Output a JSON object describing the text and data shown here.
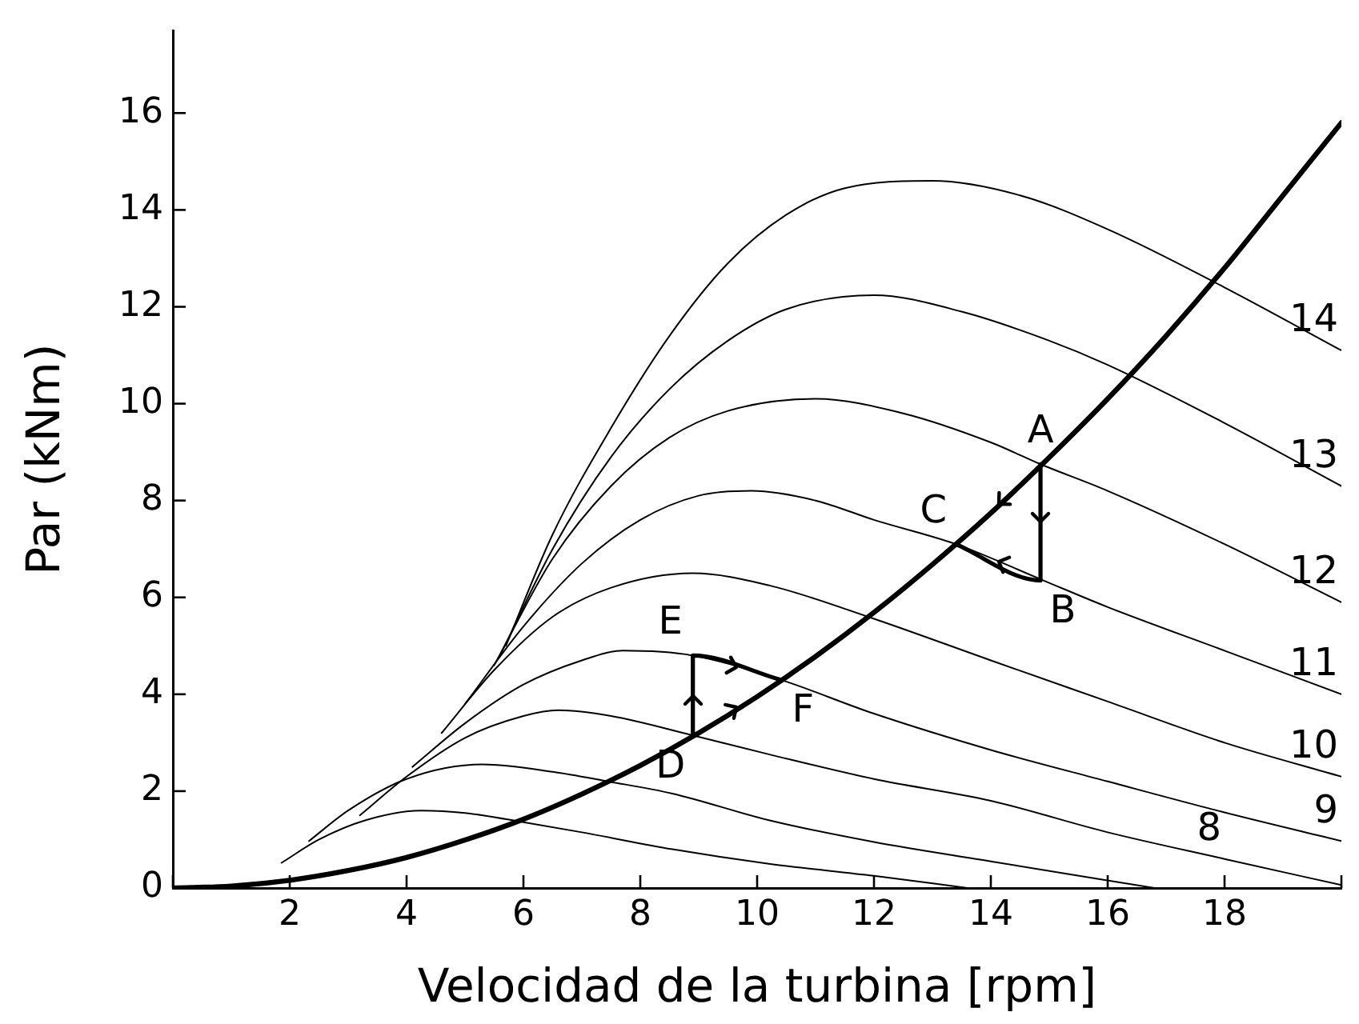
{
  "chart_data": {
    "type": "line",
    "xlabel": "Velocidad de la turbina [rpm]",
    "ylabel": "Par (kNm)",
    "xlim": [
      0,
      20
    ],
    "ylim": [
      0,
      17.7
    ],
    "xticks": [
      {
        "value": 0,
        "label": null
      },
      2,
      4,
      6,
      8,
      10,
      12,
      14,
      16,
      18,
      {
        "value": 20,
        "label": null
      }
    ],
    "yticks": [
      0,
      2,
      4,
      6,
      8,
      10,
      12,
      14,
      16
    ],
    "grid": false,
    "legend": false,
    "marker": "none",
    "line_style": "solid",
    "series": [
      {
        "color": "#000000",
        "x": [
          1.86,
          2.5,
          3.3,
          4.25,
          5,
          6,
          7,
          8.55,
          10.2,
          12,
          13.6
        ],
        "values": [
          0.52,
          1.0,
          1.4,
          1.6,
          1.55,
          1.36,
          1.15,
          0.8,
          0.5,
          0.25,
          0
        ]
      },
      {
        "color": "#000000",
        "x": [
          2.33,
          3,
          4,
          5.3,
          6.5,
          7.45,
          8.55,
          10.2,
          12,
          14,
          16.8
        ],
        "values": [
          0.97,
          1.6,
          2.25,
          2.55,
          2.4,
          2.2,
          1.95,
          1.4,
          0.95,
          0.55,
          0
        ]
      },
      {
        "color": "#000000",
        "x": [
          3.2,
          4,
          5,
          6,
          6.6,
          7.5,
          8.9,
          10.2,
          12,
          14,
          16,
          18,
          20
        ],
        "values": [
          1.5,
          2.3,
          3.1,
          3.55,
          3.67,
          3.55,
          3.15,
          2.76,
          2.25,
          1.8,
          1.15,
          0.6,
          0.06
        ]
      },
      {
        "color": "#000000",
        "x": [
          4.1,
          5,
          6,
          7,
          7.7,
          8.9,
          10.4,
          12,
          14,
          16,
          18,
          20
        ],
        "values": [
          2.5,
          3.4,
          4.2,
          4.7,
          4.9,
          4.8,
          4.3,
          3.6,
          2.85,
          2.2,
          1.56,
          0.97
        ]
      },
      {
        "color": "#000000",
        "x": [
          4.6,
          5.5,
          6.5,
          7.5,
          8.9,
          10.2,
          11.9,
          14,
          16,
          18,
          20
        ],
        "values": [
          3.2,
          4.5,
          5.6,
          6.2,
          6.5,
          6.25,
          5.6,
          4.7,
          3.85,
          3.0,
          2.3
        ]
      },
      {
        "color": "#000000",
        "x": [
          5.0,
          6,
          7,
          8,
          9,
          9.9,
          11,
          12,
          13.4,
          14.9,
          16,
          18,
          20
        ],
        "values": [
          3.8,
          5.4,
          6.7,
          7.6,
          8.1,
          8.2,
          8.0,
          7.6,
          7.1,
          6.35,
          5.8,
          4.9,
          4.0
        ]
      },
      {
        "color": "#000000",
        "x": [
          5.5,
          6.5,
          7.5,
          8.5,
          9.5,
          11,
          12.5,
          14,
          14.85,
          16,
          18,
          20
        ],
        "values": [
          4.6,
          6.8,
          8.3,
          9.3,
          9.85,
          10.1,
          9.8,
          9.2,
          8.75,
          8.2,
          7.1,
          5.9
        ]
      },
      {
        "color": "#000000",
        "x": [
          5.6,
          6.5,
          7.5,
          8.5,
          9.5,
          10.5,
          12,
          13.5,
          15,
          16,
          18,
          20
        ],
        "values": [
          4.8,
          7.0,
          8.9,
          10.3,
          11.3,
          11.95,
          12.24,
          11.9,
          11.3,
          10.8,
          9.6,
          8.3
        ]
      },
      {
        "color": "#000000",
        "x": [
          5.7,
          6.5,
          7.5,
          8.5,
          9.5,
          10.5,
          11.5,
          13,
          14.5,
          16,
          18,
          20
        ],
        "values": [
          5.0,
          7.3,
          9.5,
          11.4,
          12.9,
          13.9,
          14.45,
          14.6,
          14.3,
          13.6,
          12.4,
          11.1
        ]
      },
      {
        "color": "#000000",
        "x": [
          0,
          1,
          2,
          3,
          4,
          5,
          6,
          7,
          8,
          9,
          10,
          11,
          12,
          13,
          14,
          15,
          16,
          17,
          18,
          19,
          20
        ],
        "values": [
          0,
          0.04,
          0.16,
          0.36,
          0.63,
          0.99,
          1.42,
          1.94,
          2.53,
          3.2,
          3.95,
          4.78,
          5.69,
          6.68,
          7.74,
          8.89,
          10.1,
          11.4,
          12.8,
          14.3,
          15.8
        ]
      },
      {
        "color": "#000000",
        "x": [
          14.85,
          14.85,
          13.4
        ],
        "values": [
          8.75,
          6.35,
          7.1
        ]
      },
      {
        "color": "#000000",
        "x": [
          8.9,
          8.9,
          10.4
        ],
        "values": [
          3.15,
          4.8,
          4.3
        ]
      }
    ],
    "annotations": [
      {
        "text": "A",
        "x": 14.85,
        "y": 8.75
      },
      {
        "text": "B",
        "x": 14.85,
        "y": 6.35
      },
      {
        "text": "C",
        "x": 13.4,
        "y": 7.1
      },
      {
        "text": "D",
        "x": 8.9,
        "y": 3.15
      },
      {
        "text": "E",
        "x": 8.9,
        "y": 4.8
      },
      {
        "text": "F",
        "x": 10.4,
        "y": 4.3
      },
      {
        "text": "14",
        "x": 20,
        "y": 11.1
      },
      {
        "text": "13",
        "x": 20,
        "y": 8.3
      },
      {
        "text": "12",
        "x": 20,
        "y": 5.9
      },
      {
        "text": "11",
        "x": 20,
        "y": 4.0
      },
      {
        "text": "10",
        "x": 20,
        "y": 2.3
      },
      {
        "text": "9",
        "x": 20,
        "y": 0.97
      },
      {
        "text": "8",
        "x": 18,
        "y": 0.6
      }
    ]
  }
}
